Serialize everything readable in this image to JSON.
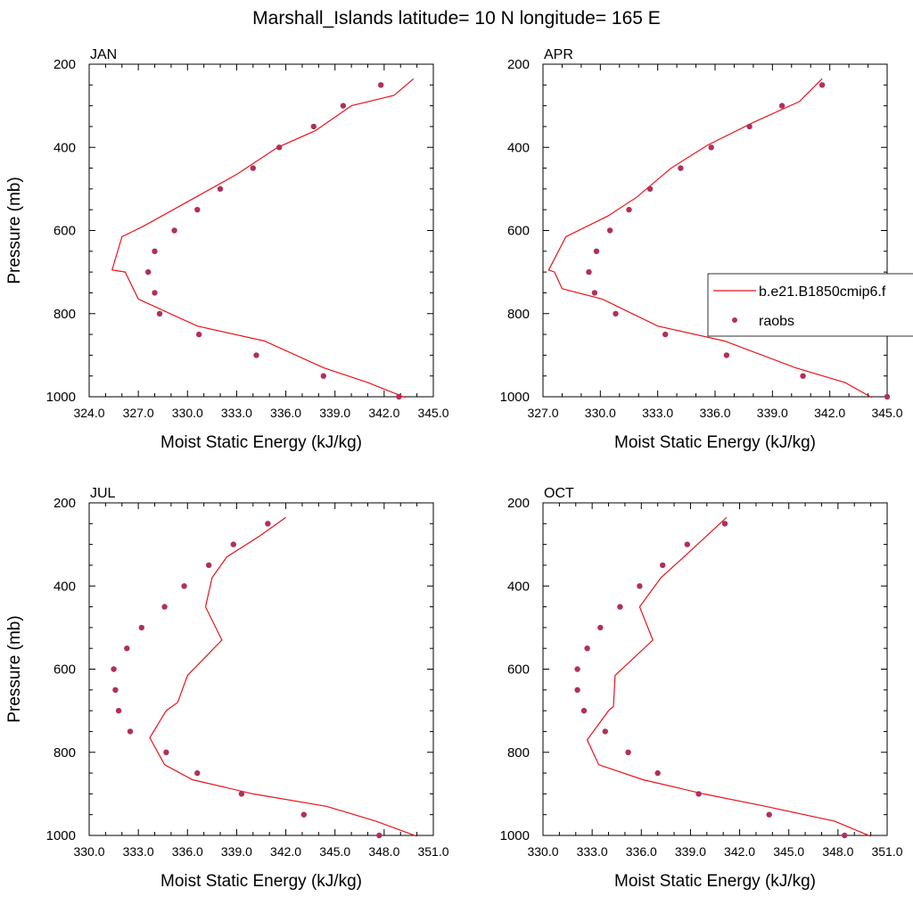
{
  "figure": {
    "title": "Marshall_Islands  latitude= 10 N longitude= 165 E"
  },
  "colors": {
    "model": "#e8141b",
    "obs": "#b0305a",
    "axis": "#000000",
    "background": "#ffffff"
  },
  "legend": {
    "placement": "right-middle of APR panel",
    "entries": [
      {
        "label": "b.e21.B1850cmip6.f",
        "style": "line"
      },
      {
        "label": "raobs",
        "style": "marker"
      }
    ]
  },
  "chart_data": [
    {
      "type": "line",
      "panel_label": "JAN",
      "xlabel": "Moist Static Energy (kJ/kg)",
      "ylabel": "Pressure (mb)",
      "xlim": [
        324,
        345
      ],
      "ylim": [
        1000,
        200
      ],
      "y_inverted": true,
      "xticks": [
        "324.0",
        "327.0",
        "330.0",
        "333.0",
        "336.0",
        "339.0",
        "342.0",
        "345.0"
      ],
      "yticks": [
        "200",
        "400",
        "600",
        "800",
        "1000"
      ],
      "series": [
        {
          "name": "b.e21.B1850cmip6.f",
          "style": "line",
          "x": [
            343.3,
            341.0,
            338.3,
            334.7,
            330.6,
            327.0,
            326.2,
            325.4,
            326.0,
            327.3,
            330.5,
            333.0,
            335.5,
            337.8,
            340.0,
            342.6,
            343.8
          ],
          "y": [
            1002,
            966,
            930,
            866,
            830,
            765,
            700,
            695,
            615,
            590,
            520,
            465,
            400,
            360,
            300,
            275,
            235
          ]
        },
        {
          "name": "raobs",
          "style": "scatter",
          "x": [
            342.9,
            338.3,
            334.2,
            330.7,
            328.3,
            328.0,
            327.6,
            328.0,
            329.2,
            330.6,
            332.0,
            334.0,
            335.6,
            337.7,
            339.5,
            341.8
          ],
          "y": [
            1000,
            950,
            900,
            850,
            800,
            750,
            700,
            650,
            600,
            550,
            500,
            450,
            400,
            350,
            300,
            250
          ]
        }
      ]
    },
    {
      "type": "line",
      "panel_label": "APR",
      "xlabel": "Moist Static Energy (kJ/kg)",
      "ylabel": "",
      "xlim": [
        327,
        345
      ],
      "ylim": [
        1000,
        200
      ],
      "y_inverted": true,
      "xticks": [
        "327.0",
        "330.0",
        "333.0",
        "336.0",
        "339.0",
        "342.0",
        "345.0"
      ],
      "yticks": [
        "200",
        "400",
        "600",
        "800",
        "1000"
      ],
      "series": [
        {
          "name": "b.e21.B1850cmip6.f",
          "style": "line",
          "x": [
            344.2,
            342.8,
            340.2,
            336.5,
            333.0,
            330.1,
            328.0,
            327.6,
            327.3,
            328.2,
            330.4,
            331.9,
            333.7,
            335.6,
            338.0,
            340.4,
            341.6
          ],
          "y": [
            1002,
            966,
            930,
            866,
            830,
            765,
            740,
            700,
            695,
            615,
            565,
            520,
            450,
            395,
            340,
            290,
            235
          ]
        },
        {
          "name": "raobs",
          "style": "scatter",
          "x": [
            345.0,
            340.6,
            336.6,
            333.4,
            330.8,
            329.7,
            329.4,
            329.8,
            330.5,
            331.5,
            332.6,
            334.2,
            335.8,
            337.8,
            339.5,
            341.6
          ],
          "y": [
            1000,
            950,
            900,
            850,
            800,
            750,
            700,
            650,
            600,
            550,
            500,
            450,
            400,
            350,
            300,
            250
          ]
        }
      ]
    },
    {
      "type": "line",
      "panel_label": "JUL",
      "xlabel": "Moist Static Energy (kJ/kg)",
      "ylabel": "Pressure (mb)",
      "xlim": [
        330,
        351
      ],
      "ylim": [
        1000,
        200
      ],
      "y_inverted": true,
      "xticks": [
        "330.0",
        "333.0",
        "336.0",
        "339.0",
        "342.0",
        "345.0",
        "348.0",
        "351.0"
      ],
      "yticks": [
        "200",
        "400",
        "600",
        "800",
        "1000"
      ],
      "series": [
        {
          "name": "b.e21.B1850cmip6.f",
          "style": "line",
          "x": [
            350.0,
            347.5,
            344.5,
            340.0,
            336.3,
            334.6,
            333.7,
            334.7,
            335.4,
            336.0,
            338.1,
            337.1,
            337.5,
            338.4,
            340.4,
            342.0
          ],
          "y": [
            1002,
            966,
            930,
            900,
            866,
            830,
            765,
            700,
            680,
            615,
            530,
            450,
            380,
            330,
            280,
            235
          ]
        },
        {
          "name": "raobs",
          "style": "scatter",
          "x": [
            347.7,
            343.1,
            339.3,
            336.6,
            334.7,
            332.5,
            331.8,
            331.6,
            331.5,
            332.3,
            333.2,
            334.6,
            335.8,
            337.3,
            338.8,
            340.9
          ],
          "y": [
            1000,
            950,
            900,
            850,
            800,
            750,
            700,
            650,
            600,
            550,
            500,
            450,
            400,
            350,
            300,
            250
          ]
        }
      ]
    },
    {
      "type": "line",
      "panel_label": "OCT",
      "xlabel": "Moist Static Energy (kJ/kg)",
      "ylabel": "",
      "xlim": [
        330,
        351
      ],
      "ylim": [
        1000,
        200
      ],
      "y_inverted": true,
      "xticks": [
        "330.0",
        "333.0",
        "336.0",
        "339.0",
        "342.0",
        "345.0",
        "348.0",
        "351.0"
      ],
      "yticks": [
        "200",
        "400",
        "600",
        "800",
        "1000"
      ],
      "series": [
        {
          "name": "b.e21.B1850cmip6.f",
          "style": "line",
          "x": [
            350.0,
            347.8,
            343.6,
            339.8,
            336.1,
            333.4,
            332.7,
            334.0,
            334.3,
            334.4,
            336.7,
            335.9,
            337.2,
            338.6,
            341.2
          ],
          "y": [
            1002,
            966,
            930,
            900,
            866,
            830,
            770,
            700,
            690,
            615,
            530,
            450,
            380,
            330,
            235
          ]
        },
        {
          "name": "raobs",
          "style": "scatter",
          "x": [
            348.4,
            343.8,
            339.5,
            337.0,
            335.2,
            333.8,
            332.5,
            332.1,
            332.1,
            332.7,
            333.5,
            334.7,
            335.9,
            337.3,
            338.8,
            341.1
          ],
          "y": [
            1000,
            950,
            900,
            850,
            800,
            750,
            700,
            650,
            600,
            550,
            500,
            450,
            400,
            350,
            300,
            250
          ]
        }
      ]
    }
  ]
}
